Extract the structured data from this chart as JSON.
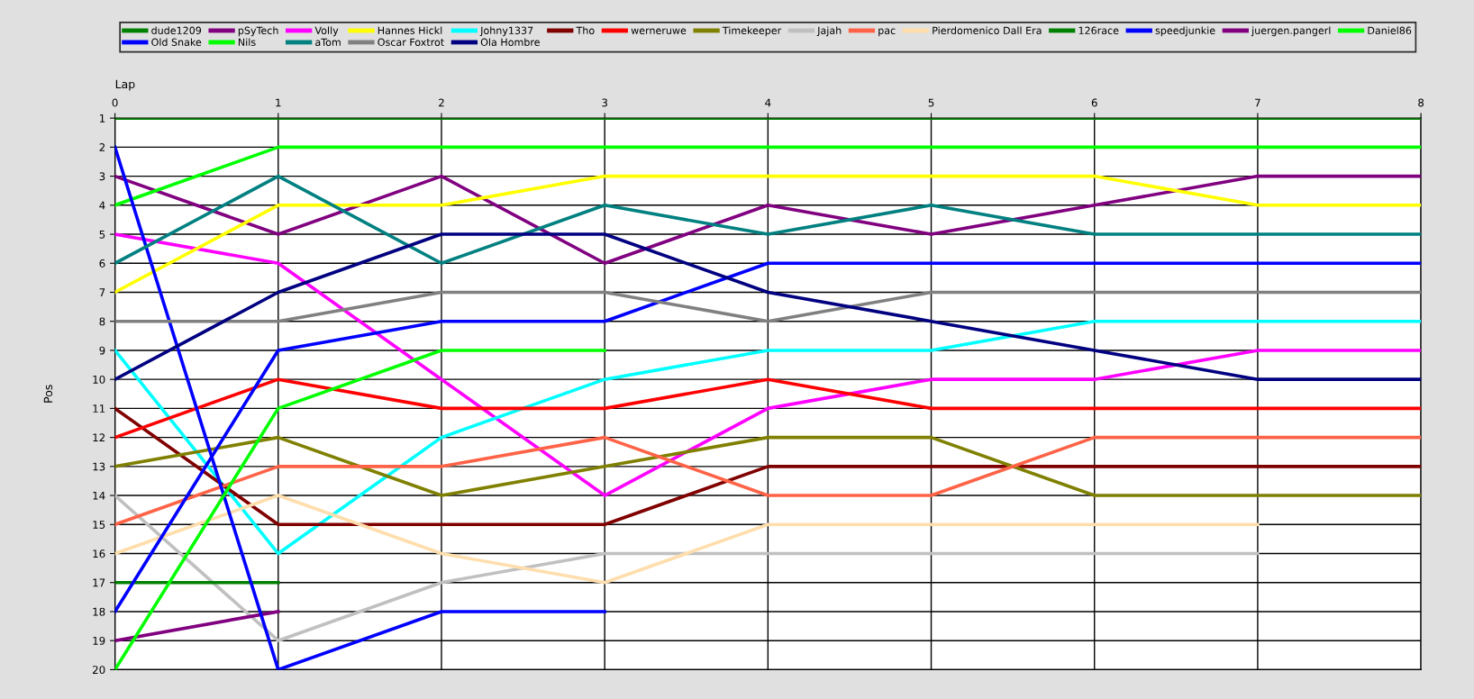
{
  "chart_data": {
    "type": "line",
    "xlabel": "Lap",
    "ylabel": "Pos",
    "x": [
      0,
      1,
      2,
      3,
      4,
      5,
      6,
      7,
      8
    ],
    "xlim": [
      0,
      8
    ],
    "xticks": [
      0,
      1,
      2,
      3,
      4,
      5,
      6,
      7,
      8
    ],
    "ylim": [
      20,
      1
    ],
    "yticks": [
      1,
      2,
      3,
      4,
      5,
      6,
      7,
      8,
      9,
      10,
      11,
      12,
      13,
      14,
      15,
      16,
      17,
      18,
      19,
      20
    ],
    "grid": true,
    "legend": "top",
    "marker": "none",
    "line_style": "solid",
    "series": [
      {
        "name": "dude1209",
        "color": "#008000",
        "values": [
          1,
          1,
          1,
          1,
          1,
          1,
          1,
          1,
          1
        ]
      },
      {
        "name": "pSyTech",
        "color": "#800080",
        "values": [
          3,
          5,
          3,
          6,
          4,
          5,
          4,
          3,
          3
        ]
      },
      {
        "name": "Volly",
        "color": "#ff00ff",
        "values": [
          5,
          6,
          10,
          14,
          11,
          10,
          10,
          9,
          9
        ]
      },
      {
        "name": "Hannes Hickl",
        "color": "#ffff00",
        "values": [
          7,
          4,
          4,
          3,
          3,
          3,
          3,
          4,
          4
        ]
      },
      {
        "name": "Johny1337",
        "color": "#00ffff",
        "values": [
          9,
          16,
          12,
          10,
          9,
          9,
          8,
          8,
          8
        ]
      },
      {
        "name": "Tho",
        "color": "#800000",
        "values": [
          11,
          15,
          15,
          15,
          13,
          13,
          13,
          13,
          13
        ]
      },
      {
        "name": "werneruwe",
        "color": "#ff0000",
        "values": [
          12,
          10,
          11,
          11,
          10,
          11,
          11,
          11,
          11
        ]
      },
      {
        "name": "Timekeeper",
        "color": "#808000",
        "values": [
          13,
          12,
          14,
          13,
          12,
          12,
          14,
          14,
          14
        ]
      },
      {
        "name": "Jajah",
        "color": "#c0c0c0",
        "values": [
          14,
          19,
          17,
          16,
          16,
          16,
          16,
          16,
          null
        ]
      },
      {
        "name": "pac",
        "color": "#ff6347",
        "values": [
          15,
          13,
          13,
          12,
          14,
          14,
          12,
          12,
          12
        ]
      },
      {
        "name": "Pierdomenico Dall Era",
        "color": "#ffdead",
        "values": [
          16,
          14,
          16,
          17,
          15,
          15,
          15,
          15,
          null
        ]
      },
      {
        "name": "126race",
        "color": "#008000",
        "values": [
          17,
          17,
          null,
          null,
          null,
          null,
          null,
          null,
          null
        ]
      },
      {
        "name": "speedjunkie",
        "color": "#0000ff",
        "values": [
          18,
          9,
          8,
          8,
          6,
          6,
          6,
          6,
          6
        ]
      },
      {
        "name": "juergen.pangerl",
        "color": "#800080",
        "values": [
          19,
          18,
          null,
          null,
          null,
          null,
          null,
          null,
          null
        ]
      },
      {
        "name": "Daniel86",
        "color": "#00ff00",
        "values": [
          4,
          2,
          2,
          2,
          2,
          2,
          2,
          2,
          2
        ]
      },
      {
        "name": "Old Snake",
        "color": "#0000ff",
        "values": [
          2,
          20,
          18,
          18,
          null,
          null,
          null,
          null,
          null
        ]
      },
      {
        "name": "Nils",
        "color": "#00ff00",
        "values": [
          20,
          11,
          9,
          9,
          null,
          null,
          null,
          null,
          null
        ]
      },
      {
        "name": "aTom",
        "color": "#008080",
        "values": [
          6,
          3,
          6,
          4,
          5,
          4,
          5,
          5,
          5
        ]
      },
      {
        "name": "Oscar Foxtrot",
        "color": "#808080",
        "values": [
          8,
          8,
          7,
          7,
          8,
          7,
          7,
          7,
          7
        ]
      },
      {
        "name": "Ola Hombre",
        "color": "#000080",
        "values": [
          10,
          7,
          5,
          5,
          7,
          8,
          9,
          10,
          10
        ]
      }
    ]
  }
}
